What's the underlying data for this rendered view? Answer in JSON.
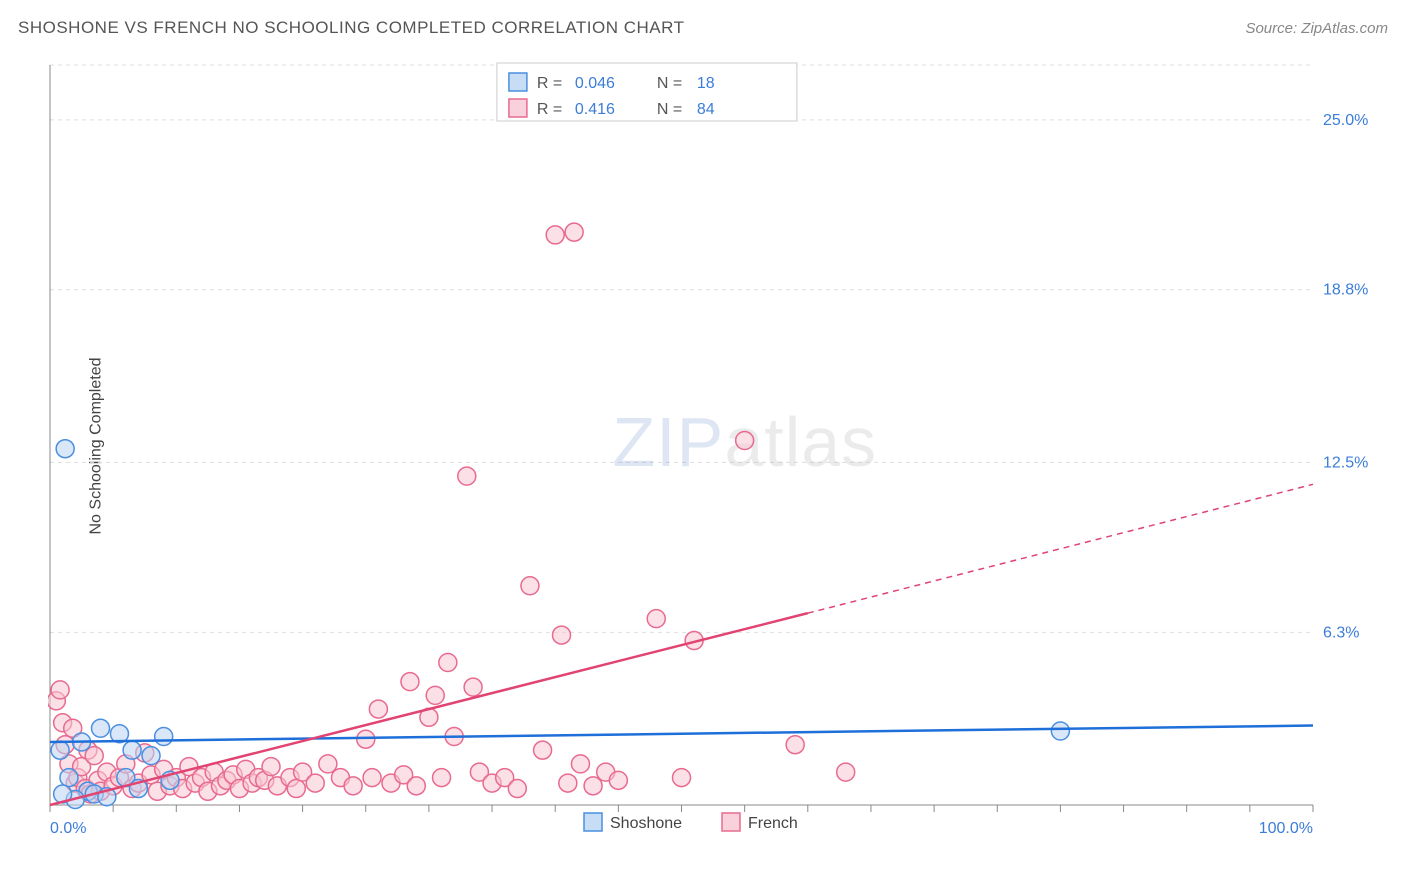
{
  "title": "SHOSHONE VS FRENCH NO SCHOOLING COMPLETED CORRELATION CHART",
  "source": "Source: ZipAtlas.com",
  "y_axis_label": "No Schooling Completed",
  "watermark_a": "ZIP",
  "watermark_b": "atlas",
  "chart": {
    "type": "scatter",
    "xlim": [
      0,
      100
    ],
    "ylim": [
      0,
      27
    ],
    "y_ticks": [
      {
        "v": 6.3,
        "label": "6.3%"
      },
      {
        "v": 12.5,
        "label": "12.5%"
      },
      {
        "v": 18.8,
        "label": "18.8%"
      },
      {
        "v": 25.0,
        "label": "25.0%"
      }
    ],
    "x_ticks_minor_step": 5,
    "x_labels": {
      "start": "0.0%",
      "end": "100.0%"
    },
    "plot_bg": "#ffffff",
    "grid_color": "#dddddd",
    "axis_color": "#888888",
    "marker_radius": 9,
    "series": [
      {
        "name": "Shoshone",
        "fill": "#b9d4f2",
        "stroke": "#4a8fe0",
        "fill_opacity": 0.55,
        "R": "0.046",
        "N": "18",
        "trend": {
          "x1": 0,
          "y1": 2.3,
          "x2": 100,
          "y2": 2.9,
          "color": "#1e6fd9"
        },
        "points": [
          [
            1.2,
            13.0
          ],
          [
            4.0,
            2.8
          ],
          [
            1.5,
            1.0
          ],
          [
            2.5,
            2.3
          ],
          [
            3.0,
            0.5
          ],
          [
            3.5,
            0.4
          ],
          [
            5.5,
            2.6
          ],
          [
            6.0,
            1.0
          ],
          [
            7.0,
            0.6
          ],
          [
            8.0,
            1.8
          ],
          [
            9.0,
            2.5
          ],
          [
            9.5,
            0.9
          ],
          [
            4.5,
            0.3
          ],
          [
            2.0,
            0.2
          ],
          [
            0.8,
            2.0
          ],
          [
            1.0,
            0.4
          ],
          [
            80.0,
            2.7
          ],
          [
            6.5,
            2.0
          ]
        ]
      },
      {
        "name": "French",
        "fill": "#f7c6d4",
        "stroke": "#e96a8f",
        "fill_opacity": 0.55,
        "R": "0.416",
        "N": "84",
        "trend": {
          "x1": 0,
          "y1": 0.0,
          "x2": 60,
          "y2": 7.0,
          "x3": 100,
          "y3": 11.7,
          "color": "#e24472"
        },
        "points": [
          [
            0.5,
            3.8
          ],
          [
            0.8,
            4.2
          ],
          [
            1.0,
            3.0
          ],
          [
            1.2,
            2.2
          ],
          [
            1.5,
            1.5
          ],
          [
            1.8,
            2.8
          ],
          [
            2.0,
            0.8
          ],
          [
            2.2,
            1.0
          ],
          [
            2.5,
            1.4
          ],
          [
            2.8,
            0.6
          ],
          [
            3.0,
            2.0
          ],
          [
            3.2,
            0.4
          ],
          [
            3.5,
            1.8
          ],
          [
            3.8,
            0.9
          ],
          [
            4.0,
            0.5
          ],
          [
            4.5,
            1.2
          ],
          [
            5.0,
            0.7
          ],
          [
            5.5,
            1.0
          ],
          [
            6.0,
            1.5
          ],
          [
            6.5,
            0.6
          ],
          [
            7.0,
            0.8
          ],
          [
            7.5,
            1.9
          ],
          [
            8.0,
            1.1
          ],
          [
            8.5,
            0.5
          ],
          [
            9.0,
            1.3
          ],
          [
            9.5,
            0.7
          ],
          [
            10.0,
            1.0
          ],
          [
            10.5,
            0.6
          ],
          [
            11.0,
            1.4
          ],
          [
            11.5,
            0.8
          ],
          [
            12.0,
            1.0
          ],
          [
            12.5,
            0.5
          ],
          [
            13.0,
            1.2
          ],
          [
            13.5,
            0.7
          ],
          [
            14.0,
            0.9
          ],
          [
            14.5,
            1.1
          ],
          [
            15.0,
            0.6
          ],
          [
            15.5,
            1.3
          ],
          [
            16.0,
            0.8
          ],
          [
            16.5,
            1.0
          ],
          [
            17.0,
            0.9
          ],
          [
            17.5,
            1.4
          ],
          [
            18.0,
            0.7
          ],
          [
            19.0,
            1.0
          ],
          [
            19.5,
            0.6
          ],
          [
            20.0,
            1.2
          ],
          [
            21.0,
            0.8
          ],
          [
            22.0,
            1.5
          ],
          [
            23.0,
            1.0
          ],
          [
            24.0,
            0.7
          ],
          [
            25.0,
            2.4
          ],
          [
            25.5,
            1.0
          ],
          [
            26.0,
            3.5
          ],
          [
            27.0,
            0.8
          ],
          [
            28.0,
            1.1
          ],
          [
            28.5,
            4.5
          ],
          [
            29.0,
            0.7
          ],
          [
            30.0,
            3.2
          ],
          [
            30.5,
            4.0
          ],
          [
            31.0,
            1.0
          ],
          [
            31.5,
            5.2
          ],
          [
            32.0,
            2.5
          ],
          [
            33.0,
            12.0
          ],
          [
            33.5,
            4.3
          ],
          [
            34.0,
            1.2
          ],
          [
            35.0,
            0.8
          ],
          [
            36.0,
            1.0
          ],
          [
            37.0,
            0.6
          ],
          [
            38.0,
            8.0
          ],
          [
            40.0,
            20.8
          ],
          [
            41.5,
            20.9
          ],
          [
            39.0,
            2.0
          ],
          [
            40.5,
            6.2
          ],
          [
            41.0,
            0.8
          ],
          [
            42.0,
            1.5
          ],
          [
            43.0,
            0.7
          ],
          [
            44.0,
            1.2
          ],
          [
            45.0,
            0.9
          ],
          [
            48.0,
            6.8
          ],
          [
            50.0,
            1.0
          ],
          [
            51.0,
            6.0
          ],
          [
            55.0,
            13.3
          ],
          [
            59.0,
            2.2
          ],
          [
            63.0,
            1.2
          ]
        ]
      }
    ],
    "legend_top": {
      "bg": "#ffffff",
      "border": "#cccccc",
      "value_color": "#3b7dd8",
      "label_color": "#555555"
    },
    "legend_bottom": {
      "label_color": "#444444"
    }
  }
}
